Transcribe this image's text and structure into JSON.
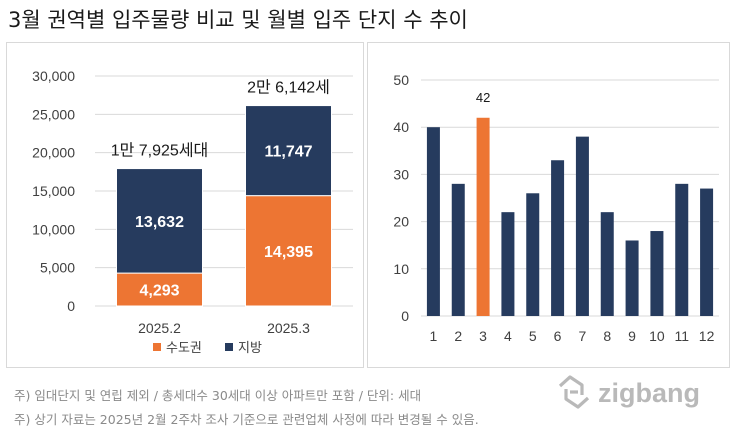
{
  "title": "3월 권역별 입주물량 비교 및 월별 입주 단지 수 추이",
  "footnotes": [
    "주) 임대단지 및 연립 제외 / 총세대수 30세대 이상 아파트만 포함 / 단위: 세대",
    "주) 상기 자료는 2025년 2월 2주차 조사 기준으로 관련업체 사정에 따라 변경될 수 있음."
  ],
  "logo": {
    "text": "zigbang",
    "color": "#b9b9b9"
  },
  "chart_data": [
    {
      "type": "bar",
      "stacked": true,
      "categories": [
        "2025.2",
        "2025.3"
      ],
      "series": [
        {
          "name": "수도권",
          "values": [
            4293,
            14395
          ],
          "labels": [
            "4,293",
            "14,395"
          ],
          "color": "#ed7533"
        },
        {
          "name": "지방",
          "values": [
            13632,
            11747
          ],
          "labels": [
            "13,632",
            "11,747"
          ],
          "color": "#263b5e"
        }
      ],
      "totals_labels": [
        "1만 7,925세대",
        "2만 6,142세"
      ],
      "ylim": [
        0,
        30000
      ],
      "yticks": [
        0,
        5000,
        10000,
        15000,
        20000,
        25000,
        30000
      ],
      "ytick_labels": [
        "0",
        "5,000",
        "10,000",
        "15,000",
        "20,000",
        "25,000",
        "30,000"
      ],
      "grid": true,
      "legend": "bottom"
    },
    {
      "type": "bar",
      "categories": [
        "1",
        "2",
        "3",
        "4",
        "5",
        "6",
        "7",
        "8",
        "9",
        "10",
        "11",
        "12"
      ],
      "values": [
        40,
        28,
        42,
        22,
        26,
        33,
        38,
        22,
        16,
        18,
        28,
        27
      ],
      "highlight_index": 2,
      "highlight_label": "42",
      "colors": {
        "default": "#263b5e",
        "highlight": "#ed7533"
      },
      "ylim": [
        0,
        50
      ],
      "yticks": [
        0,
        10,
        20,
        30,
        40,
        50
      ],
      "ytick_labels": [
        "0",
        "10",
        "20",
        "30",
        "40",
        "50"
      ],
      "grid": true
    }
  ]
}
